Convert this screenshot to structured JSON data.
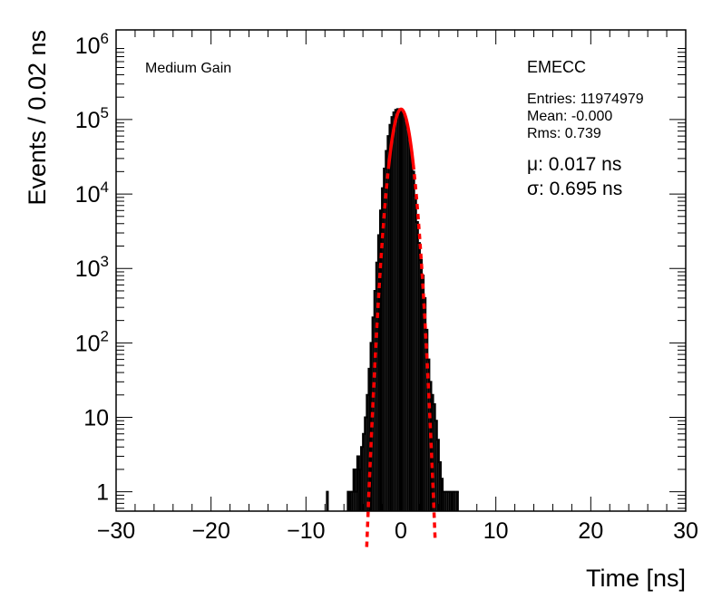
{
  "chart_data": {
    "type": "histogram",
    "xlabel": "Time [ns]",
    "ylabel": "Events / 0.02 ns",
    "xlim": [
      -30,
      30
    ],
    "ylim": [
      0.55,
      1600000
    ],
    "yscale": "log",
    "grid": false,
    "x_ticks": [
      -30,
      -20,
      -10,
      0,
      10,
      20,
      30
    ],
    "x_tick_labels": [
      "−30",
      "−20",
      "−10",
      "0",
      "10",
      "20",
      "30"
    ],
    "y_ticks": [
      {
        "value": 1,
        "base": "1",
        "exp": ""
      },
      {
        "value": 10,
        "base": "10",
        "exp": ""
      },
      {
        "value": 100,
        "base": "10",
        "exp": "2"
      },
      {
        "value": 1000,
        "base": "10",
        "exp": "3"
      },
      {
        "value": 10000,
        "base": "10",
        "exp": "4"
      },
      {
        "value": 100000,
        "base": "10",
        "exp": "5"
      },
      {
        "value": 1000000,
        "base": "10",
        "exp": "6"
      }
    ],
    "histogram": {
      "name": "EMECC",
      "color": "#000000",
      "x": [
        -7.7,
        -5.5,
        -5.3,
        -5.1,
        -4.9,
        -4.7,
        -4.5,
        -4.3,
        -4.1,
        -3.9,
        -3.7,
        -3.5,
        -3.3,
        -3.1,
        -2.9,
        -2.7,
        -2.5,
        -2.3,
        -2.1,
        -1.9,
        -1.7,
        -1.5,
        -1.3,
        -1.1,
        -0.9,
        -0.7,
        -0.5,
        -0.3,
        -0.1,
        0.1,
        0.3,
        0.5,
        0.7,
        0.9,
        1.1,
        1.3,
        1.5,
        1.7,
        1.9,
        2.1,
        2.3,
        2.5,
        2.7,
        2.9,
        3.1,
        3.3,
        3.5,
        3.7,
        3.9,
        4.1,
        4.3,
        4.5,
        4.7,
        4.9,
        5.1,
        5.3,
        5.5,
        5.7,
        6.0
      ],
      "y": [
        1,
        1,
        1,
        1,
        2,
        1,
        3,
        2,
        4,
        6,
        10,
        20,
        45,
        100,
        220,
        500,
        1200,
        2800,
        6000,
        12000,
        22000,
        38000,
        60000,
        85000,
        108000,
        125000,
        135000,
        138000,
        136000,
        130000,
        118000,
        100000,
        78000,
        56000,
        36000,
        20000,
        9500,
        4200,
        2200,
        1300,
        800,
        400,
        150,
        60,
        30,
        20,
        15,
        9,
        5,
        2.5,
        1.5,
        1,
        1,
        1,
        1,
        1,
        1,
        1,
        1
      ]
    },
    "fit": {
      "type": "gaussian",
      "color": "#ff0000",
      "amplitude": 138000,
      "mean": 0.017,
      "sigma": 0.695,
      "solid_range": [
        -1.3,
        1.3
      ],
      "dashed_range": [
        -3.6,
        3.6
      ]
    },
    "annotations": {
      "gain": "Medium Gain",
      "name": "EMECC",
      "entries": "Entries: 11974979",
      "mean": "Mean: -0.000",
      "rms": "Rms: 0.739",
      "mu": "μ: 0.017 ns",
      "sigma": "σ: 0.695 ns"
    }
  }
}
